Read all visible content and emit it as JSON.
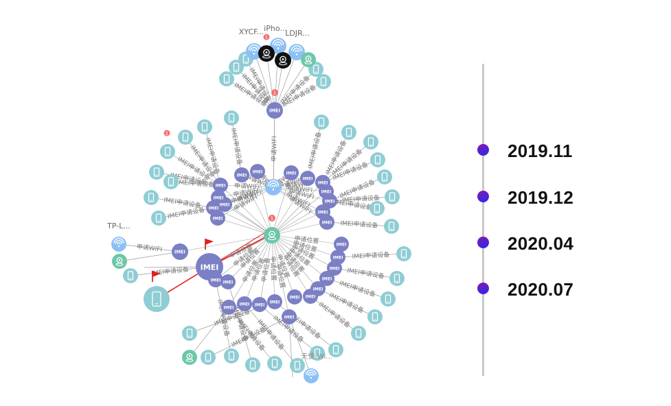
{
  "graph": {
    "center_badge": "1",
    "imei_label": "IMEI",
    "edge_label_device": "IMEI申请设备",
    "edge_label_location": "申请位置",
    "edge_label_wifi": "申请WIFI",
    "top_labels": [
      "XYCF...",
      "iPho...",
      "LDJR..."
    ],
    "side_label": "TP-L...",
    "bottom_label": "天使-Wi..."
  },
  "timeline": {
    "items": [
      {
        "label": "2019.11"
      },
      {
        "label": "2019.12"
      },
      {
        "label": "2020.04"
      },
      {
        "label": "2020.07"
      }
    ]
  },
  "colors": {
    "imei": "#7b7fc4",
    "device": "#8fcdd4",
    "wifi": "#8cc0f5",
    "location": "#6cc7a9",
    "camera": "#111111",
    "badge": "#f07070",
    "edge": "#9a9a9a",
    "highlight_edge": "#e03030",
    "timeline_line": "#c8c8c8"
  },
  "icons": {
    "device": "phone-icon",
    "wifi": "wifi-icon",
    "location": "location-pin-icon",
    "camera": "camera-icon",
    "flag": "flag-icon"
  }
}
